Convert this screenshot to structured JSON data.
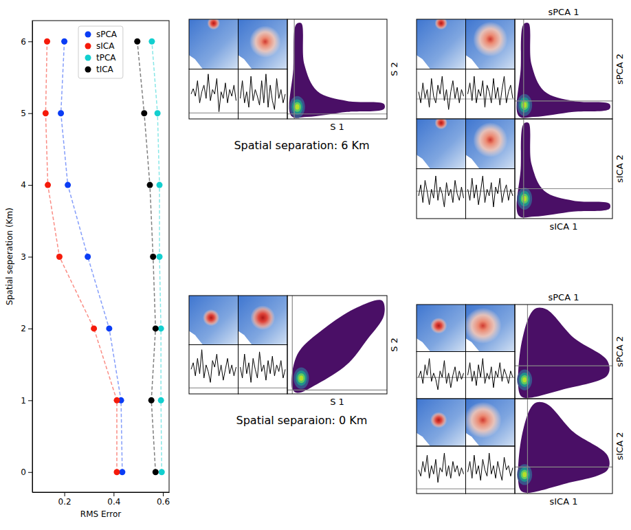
{
  "chart_data": [
    {
      "type": "line",
      "xlabel": "RMS Error",
      "ylabel": "Spatial seperation (Km)",
      "xlim": [
        0.07,
        0.625
      ],
      "ylim": [
        -0.28,
        6.29
      ],
      "xticks": [
        0.2,
        0.4,
        0.6
      ],
      "yticks": [
        0,
        1,
        2,
        3,
        4,
        5,
        6
      ],
      "legend": "upper center",
      "y": [
        0,
        1,
        2,
        3,
        4,
        5,
        6
      ],
      "series": [
        {
          "name": "sPCA",
          "color": "#0a3cf5",
          "marker": "circle",
          "line_style": "dashed",
          "x": [
            0.435,
            0.43,
            0.382,
            0.295,
            0.214,
            0.186,
            0.2
          ]
        },
        {
          "name": "sICA",
          "color": "#f51a0a",
          "marker": "circle",
          "line_style": "dashed",
          "x": [
            0.413,
            0.413,
            0.32,
            0.18,
            0.133,
            0.124,
            0.13
          ]
        },
        {
          "name": "tPCA",
          "color": "#12cfcf",
          "marker": "circle",
          "line_style": "dashed",
          "x": [
            0.595,
            0.592,
            0.592,
            0.586,
            0.586,
            0.578,
            0.555
          ]
        },
        {
          "name": "tICA",
          "color": "#000000",
          "marker": "circle",
          "line_style": "dashed",
          "x": [
            0.57,
            0.553,
            0.57,
            0.56,
            0.547,
            0.524,
            0.496
          ]
        }
      ]
    },
    {
      "type": "components",
      "title": "Spatial separation: 6 Km",
      "xlabel": "S 1",
      "ylabel": "S 2",
      "time_series": [
        [
          0.5,
          0.62,
          0.45,
          0.8,
          0.3,
          0.55,
          0.7,
          0.4,
          0.95,
          0.35,
          0.6,
          0.5,
          0.85,
          0.1,
          0.55,
          0.4,
          0.75,
          0.3,
          0.6,
          0.45,
          0.7,
          0.35
        ],
        [
          0.4,
          0.8,
          0.3,
          0.55,
          0.2,
          0.9,
          0.35,
          0.6,
          0.45,
          0.25,
          0.8,
          0.3,
          0.95,
          0.2,
          0.7,
          0.35,
          0.15,
          0.85,
          0.4,
          0.6,
          0.3,
          0.5
        ]
      ]
    },
    {
      "type": "components",
      "xlabel": "sPCA 1",
      "ylabel": "sPCA 2",
      "time_series": [
        [
          0.55,
          0.3,
          0.75,
          0.4,
          0.6,
          0.2,
          0.85,
          0.45,
          0.3,
          0.7,
          0.5,
          0.9,
          0.35,
          0.6,
          0.15,
          0.55,
          0.8,
          0.4,
          0.65,
          0.3,
          0.6,
          0.45
        ],
        [
          0.5,
          0.75,
          0.35,
          0.9,
          0.3,
          0.6,
          0.45,
          0.8,
          0.2,
          0.7,
          0.55,
          0.3,
          0.85,
          0.4,
          0.65,
          0.25,
          0.6,
          0.9,
          0.3,
          0.55,
          0.7,
          0.4
        ]
      ]
    },
    {
      "type": "components",
      "xlabel": "sICA 1",
      "ylabel": "sICA 2",
      "time_series": [
        [
          0.45,
          0.7,
          0.3,
          0.8,
          0.55,
          0.25,
          0.6,
          0.4,
          0.9,
          0.35,
          0.65,
          0.5,
          0.2,
          0.75,
          0.45,
          0.6,
          0.3,
          0.8,
          0.5,
          0.35,
          0.65,
          0.4
        ],
        [
          0.6,
          0.35,
          0.85,
          0.4,
          0.7,
          0.25,
          0.55,
          0.9,
          0.3,
          0.6,
          0.45,
          0.75,
          0.2,
          0.65,
          0.5,
          0.85,
          0.3,
          0.55,
          0.7,
          0.35,
          0.6,
          0.45
        ]
      ]
    },
    {
      "type": "components",
      "title": "Spatial separaion: 0 Km",
      "xlabel": "S 1",
      "ylabel": "S 2",
      "time_series": [
        [
          0.5,
          0.65,
          0.35,
          0.75,
          0.4,
          0.95,
          0.3,
          0.6,
          0.45,
          0.2,
          0.7,
          0.55,
          0.85,
          0.35,
          0.6,
          0.25,
          0.5,
          0.75,
          0.4,
          0.6,
          0.35,
          0.55
        ],
        [
          0.55,
          0.3,
          0.85,
          0.4,
          0.65,
          0.2,
          0.75,
          0.5,
          0.3,
          0.9,
          0.45,
          0.6,
          0.25,
          0.7,
          0.4,
          0.8,
          0.35,
          0.6,
          0.45,
          0.7,
          0.3,
          0.5
        ]
      ]
    },
    {
      "type": "components",
      "xlabel": "sPCA 1",
      "ylabel": "sPCA 2",
      "time_series": [
        [
          0.45,
          0.6,
          0.3,
          0.75,
          0.5,
          0.9,
          0.35,
          0.55,
          0.4,
          0.15,
          0.6,
          0.45,
          0.85,
          0.3,
          0.55,
          0.2,
          0.5,
          0.7,
          0.35,
          0.6,
          0.4,
          0.55
        ],
        [
          0.5,
          0.8,
          0.35,
          0.6,
          0.25,
          0.75,
          0.45,
          0.9,
          0.3,
          0.55,
          0.4,
          0.7,
          0.2,
          0.6,
          0.45,
          0.8,
          0.35,
          0.65,
          0.5,
          0.3,
          0.6,
          0.45
        ]
      ]
    },
    {
      "type": "components",
      "xlabel": "sICA 1",
      "ylabel": "sICA 2",
      "time_series": [
        [
          0.5,
          0.35,
          0.7,
          0.45,
          0.85,
          0.3,
          0.6,
          0.4,
          0.75,
          0.2,
          0.55,
          0.45,
          0.9,
          0.35,
          0.6,
          0.3,
          0.7,
          0.45,
          0.6,
          0.35,
          0.55,
          0.4
        ],
        [
          0.45,
          0.7,
          0.3,
          0.85,
          0.4,
          0.6,
          0.25,
          0.75,
          0.5,
          0.35,
          0.9,
          0.4,
          0.6,
          0.3,
          0.7,
          0.45,
          0.25,
          0.8,
          0.5,
          0.6,
          0.35,
          0.55
        ]
      ]
    }
  ]
}
